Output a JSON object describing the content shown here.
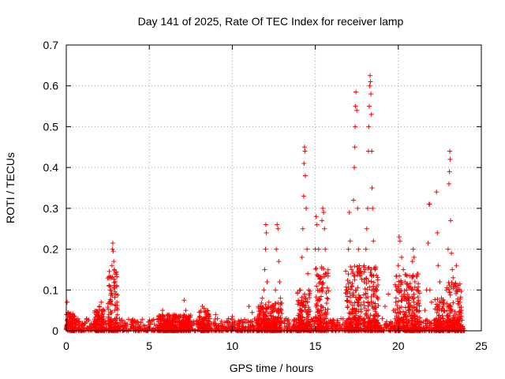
{
  "chart_data": {
    "type": "scatter",
    "title": "Day 141 of 2025, Rate Of TEC Index for receiver lamp",
    "xlabel": "GPS time / hours",
    "ylabel": "ROTI / TECUs",
    "xlim": [
      0,
      25
    ],
    "ylim": [
      0,
      0.7
    ],
    "xticks": [
      0,
      5,
      10,
      15,
      20,
      25
    ],
    "yticks": [
      0,
      0.1,
      0.2,
      0.3,
      0.4,
      0.5,
      0.6,
      0.7
    ],
    "grid": true,
    "marker": "+",
    "color": "#ff0000",
    "baseline": {
      "x_start": 0,
      "x_end": 24,
      "typical_max": 0.03
    },
    "series": [
      {
        "name": "ROTI",
        "points": [
          [
            0.05,
            0.07
          ],
          [
            0.1,
            0.045
          ],
          [
            0.15,
            0.04
          ],
          [
            0.2,
            0.035
          ],
          [
            0.3,
            0.03
          ],
          [
            0.5,
            0.025
          ],
          [
            1.8,
            0.04
          ],
          [
            1.9,
            0.045
          ],
          [
            2.0,
            0.06
          ],
          [
            2.1,
            0.07
          ],
          [
            2.2,
            0.05
          ],
          [
            2.6,
            0.07
          ],
          [
            2.65,
            0.1
          ],
          [
            2.7,
            0.13
          ],
          [
            2.75,
            0.16
          ],
          [
            2.78,
            0.2
          ],
          [
            2.8,
            0.215
          ],
          [
            2.83,
            0.195
          ],
          [
            2.86,
            0.17
          ],
          [
            2.9,
            0.15
          ],
          [
            2.95,
            0.12
          ],
          [
            3.0,
            0.09
          ],
          [
            3.05,
            0.07
          ],
          [
            5.8,
            0.05
          ],
          [
            6.5,
            0.04
          ],
          [
            7.1,
            0.075
          ],
          [
            7.2,
            0.05
          ],
          [
            8.2,
            0.06
          ],
          [
            8.3,
            0.055
          ],
          [
            8.5,
            0.05
          ],
          [
            9.0,
            0.04
          ],
          [
            10.0,
            0.035
          ],
          [
            11.0,
            0.06
          ],
          [
            11.2,
            0.045
          ],
          [
            11.8,
            0.08
          ],
          [
            11.9,
            0.1
          ],
          [
            11.95,
            0.15
          ],
          [
            12.0,
            0.2
          ],
          [
            12.02,
            0.26
          ],
          [
            12.05,
            0.24
          ],
          [
            12.1,
            0.12
          ],
          [
            12.2,
            0.07
          ],
          [
            12.5,
            0.05
          ],
          [
            12.6,
            0.1
          ],
          [
            12.65,
            0.2
          ],
          [
            12.7,
            0.26
          ],
          [
            12.75,
            0.25
          ],
          [
            12.8,
            0.17
          ],
          [
            12.85,
            0.12
          ],
          [
            12.9,
            0.08
          ],
          [
            14.0,
            0.07
          ],
          [
            14.1,
            0.1
          ],
          [
            14.2,
            0.18
          ],
          [
            14.25,
            0.25
          ],
          [
            14.3,
            0.33
          ],
          [
            14.32,
            0.41
          ],
          [
            14.35,
            0.45
          ],
          [
            14.38,
            0.44
          ],
          [
            14.4,
            0.38
          ],
          [
            14.45,
            0.3
          ],
          [
            14.5,
            0.2
          ],
          [
            14.55,
            0.14
          ],
          [
            14.6,
            0.1
          ],
          [
            15.0,
            0.2
          ],
          [
            15.05,
            0.28
          ],
          [
            15.1,
            0.26
          ],
          [
            15.2,
            0.2
          ],
          [
            15.3,
            0.12
          ],
          [
            15.4,
            0.27
          ],
          [
            15.45,
            0.3
          ],
          [
            15.5,
            0.29
          ],
          [
            15.55,
            0.25
          ],
          [
            15.6,
            0.2
          ],
          [
            15.65,
            0.14
          ],
          [
            15.7,
            0.08
          ],
          [
            16.9,
            0.1
          ],
          [
            17.0,
            0.2
          ],
          [
            17.05,
            0.29
          ],
          [
            17.1,
            0.22
          ],
          [
            17.2,
            0.15
          ],
          [
            17.3,
            0.32
          ],
          [
            17.35,
            0.4
          ],
          [
            17.38,
            0.45
          ],
          [
            17.4,
            0.5
          ],
          [
            17.42,
            0.55
          ],
          [
            17.45,
            0.585
          ],
          [
            17.5,
            0.54
          ],
          [
            17.55,
            0.3
          ],
          [
            17.6,
            0.2
          ],
          [
            17.65,
            0.14
          ],
          [
            17.7,
            0.08
          ],
          [
            18.0,
            0.15
          ],
          [
            18.05,
            0.2
          ],
          [
            18.1,
            0.25
          ],
          [
            18.15,
            0.3
          ],
          [
            18.2,
            0.44
          ],
          [
            18.22,
            0.5
          ],
          [
            18.25,
            0.55
          ],
          [
            18.28,
            0.6
          ],
          [
            18.3,
            0.625
          ],
          [
            18.32,
            0.61
          ],
          [
            18.35,
            0.58
          ],
          [
            18.38,
            0.53
          ],
          [
            18.4,
            0.44
          ],
          [
            18.42,
            0.35
          ],
          [
            18.45,
            0.3
          ],
          [
            18.5,
            0.22
          ],
          [
            18.6,
            0.15
          ],
          [
            18.7,
            0.1
          ],
          [
            19.2,
            0.06
          ],
          [
            19.4,
            0.09
          ],
          [
            19.7,
            0.05
          ],
          [
            19.9,
            0.1
          ],
          [
            20.0,
            0.16
          ],
          [
            20.05,
            0.23
          ],
          [
            20.1,
            0.22
          ],
          [
            20.2,
            0.18
          ],
          [
            20.3,
            0.15
          ],
          [
            20.4,
            0.12
          ],
          [
            20.5,
            0.1
          ],
          [
            20.6,
            0.08
          ],
          [
            20.8,
            0.1
          ],
          [
            20.85,
            0.17
          ],
          [
            20.9,
            0.2
          ],
          [
            20.95,
            0.18
          ],
          [
            21.0,
            0.12
          ],
          [
            21.1,
            0.1
          ],
          [
            21.2,
            0.07
          ],
          [
            21.6,
            0.05
          ],
          [
            21.7,
            0.1
          ],
          [
            21.8,
            0.215
          ],
          [
            21.85,
            0.31
          ],
          [
            21.88,
            0.31
          ],
          [
            21.9,
            0.1
          ],
          [
            22.0,
            0.07
          ],
          [
            22.3,
            0.34
          ],
          [
            22.35,
            0.24
          ],
          [
            22.4,
            0.16
          ],
          [
            22.5,
            0.12
          ],
          [
            22.6,
            0.08
          ],
          [
            22.7,
            0.06
          ],
          [
            22.9,
            0.1
          ],
          [
            23.0,
            0.2
          ],
          [
            23.05,
            0.36
          ],
          [
            23.08,
            0.39
          ],
          [
            23.1,
            0.44
          ],
          [
            23.12,
            0.42
          ],
          [
            23.15,
            0.27
          ],
          [
            23.2,
            0.19
          ],
          [
            23.25,
            0.15
          ],
          [
            23.3,
            0.13
          ],
          [
            23.4,
            0.11
          ],
          [
            23.5,
            0.16
          ],
          [
            23.6,
            0.1
          ],
          [
            23.7,
            0.07
          ],
          [
            23.8,
            0.05
          ]
        ]
      }
    ],
    "dense_bursts": [
      {
        "x_start": 0.0,
        "x_end": 0.5,
        "max": 0.045
      },
      {
        "x_start": 1.7,
        "x_end": 2.3,
        "max": 0.06
      },
      {
        "x_start": 2.5,
        "x_end": 3.1,
        "max": 0.15
      },
      {
        "x_start": 5.5,
        "x_end": 7.5,
        "max": 0.04
      },
      {
        "x_start": 8.0,
        "x_end": 8.6,
        "max": 0.055
      },
      {
        "x_start": 11.5,
        "x_end": 13.0,
        "max": 0.07
      },
      {
        "x_start": 13.9,
        "x_end": 14.7,
        "max": 0.1
      },
      {
        "x_start": 15.0,
        "x_end": 15.8,
        "max": 0.16
      },
      {
        "x_start": 16.8,
        "x_end": 17.8,
        "max": 0.16
      },
      {
        "x_start": 17.9,
        "x_end": 18.8,
        "max": 0.16
      },
      {
        "x_start": 19.8,
        "x_end": 21.3,
        "max": 0.14
      },
      {
        "x_start": 22.2,
        "x_end": 22.8,
        "max": 0.08
      },
      {
        "x_start": 22.9,
        "x_end": 23.8,
        "max": 0.12
      }
    ]
  }
}
